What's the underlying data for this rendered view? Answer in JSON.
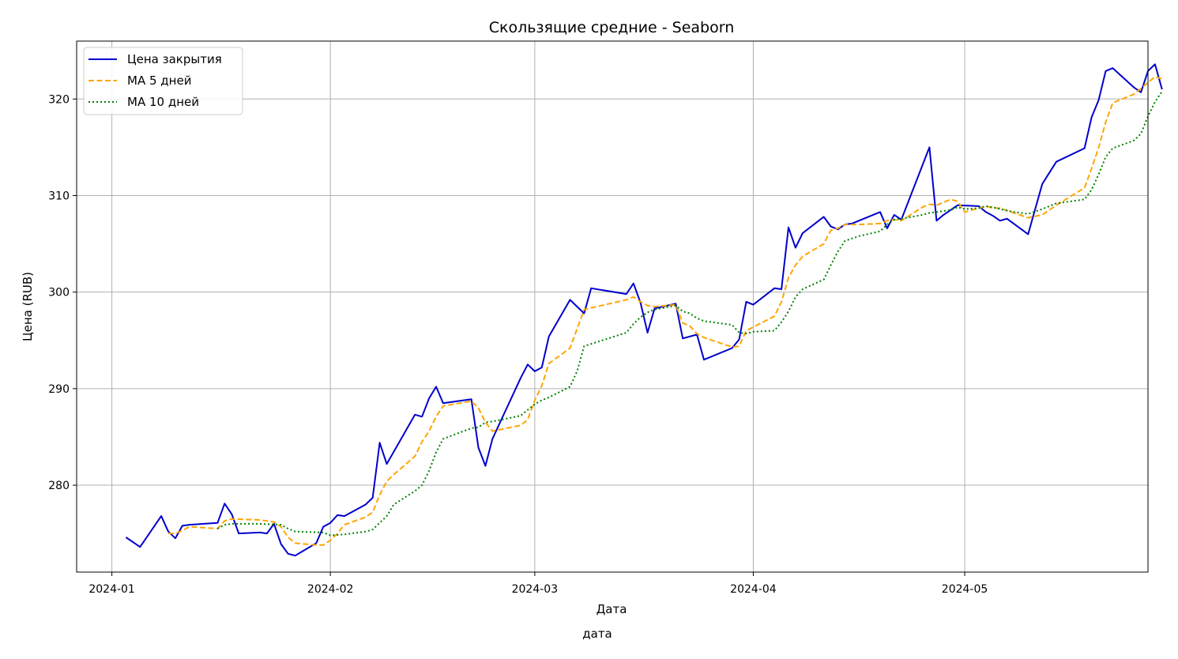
{
  "chart_data": {
    "type": "line",
    "title": "Скользящие средние - Seaborn",
    "xlabel": "Дата",
    "ylabel": "Цена (RUB)",
    "footer_label": "дата",
    "x_ticks": [
      "2024-01",
      "2024-02",
      "2024-03",
      "2024-04",
      "2024-05"
    ],
    "y_ticks": [
      280,
      290,
      300,
      310,
      320
    ],
    "xlim": [
      "2023-12-27",
      "2024-05-27"
    ],
    "ylim": [
      271,
      326
    ],
    "grid": true,
    "legend_position": "top-left",
    "series": [
      {
        "name": "Цена закрытия",
        "color": "#0000cd",
        "style": "solid",
        "points": [
          [
            "2024-01-03",
            274.6
          ],
          [
            "2024-01-05",
            273.6
          ],
          [
            "2024-01-08",
            276.8
          ],
          [
            "2024-01-09",
            275.2
          ],
          [
            "2024-01-10",
            274.5
          ],
          [
            "2024-01-11",
            275.8
          ],
          [
            "2024-01-12",
            275.9
          ],
          [
            "2024-01-16",
            276.1
          ],
          [
            "2024-01-17",
            278.1
          ],
          [
            "2024-01-18",
            277.0
          ],
          [
            "2024-01-19",
            275.0
          ],
          [
            "2024-01-22",
            275.1
          ],
          [
            "2024-01-23",
            275.0
          ],
          [
            "2024-01-24",
            276.0
          ],
          [
            "2024-01-25",
            273.9
          ],
          [
            "2024-01-26",
            272.9
          ],
          [
            "2024-01-27",
            272.7
          ],
          [
            "2024-01-30",
            274.0
          ],
          [
            "2024-01-31",
            275.7
          ],
          [
            "2024-02-01",
            276.1
          ],
          [
            "2024-02-02",
            276.9
          ],
          [
            "2024-02-03",
            276.8
          ],
          [
            "2024-02-06",
            278.0
          ],
          [
            "2024-02-07",
            278.7
          ],
          [
            "2024-02-08",
            284.4
          ],
          [
            "2024-02-09",
            282.2
          ],
          [
            "2024-02-13",
            287.3
          ],
          [
            "2024-02-14",
            287.1
          ],
          [
            "2024-02-15",
            289.0
          ],
          [
            "2024-02-16",
            290.2
          ],
          [
            "2024-02-17",
            288.5
          ],
          [
            "2024-02-21",
            288.9
          ],
          [
            "2024-02-22",
            283.9
          ],
          [
            "2024-02-23",
            282.0
          ],
          [
            "2024-02-24",
            284.8
          ],
          [
            "2024-02-28",
            291.1
          ],
          [
            "2024-02-29",
            292.5
          ],
          [
            "2024-03-01",
            291.8
          ],
          [
            "2024-03-02",
            292.2
          ],
          [
            "2024-03-03",
            295.4
          ],
          [
            "2024-03-06",
            299.2
          ],
          [
            "2024-03-08",
            297.8
          ],
          [
            "2024-03-09",
            300.4
          ],
          [
            "2024-03-14",
            299.8
          ],
          [
            "2024-03-15",
            300.9
          ],
          [
            "2024-03-16",
            298.9
          ],
          [
            "2024-03-17",
            295.8
          ],
          [
            "2024-03-18",
            298.3
          ],
          [
            "2024-03-21",
            298.8
          ],
          [
            "2024-03-22",
            295.2
          ],
          [
            "2024-03-24",
            295.6
          ],
          [
            "2024-03-25",
            293.0
          ],
          [
            "2024-03-29",
            294.2
          ],
          [
            "2024-03-30",
            295.1
          ],
          [
            "2024-03-31",
            299.0
          ],
          [
            "2024-04-01",
            298.7
          ],
          [
            "2024-04-04",
            300.4
          ],
          [
            "2024-04-05",
            300.3
          ],
          [
            "2024-04-06",
            306.7
          ],
          [
            "2024-04-07",
            304.6
          ],
          [
            "2024-04-08",
            306.1
          ],
          [
            "2024-04-11",
            307.8
          ],
          [
            "2024-04-12",
            306.8
          ],
          [
            "2024-04-13",
            306.5
          ],
          [
            "2024-04-14",
            307.0
          ],
          [
            "2024-04-15",
            307.1
          ],
          [
            "2024-04-19",
            308.3
          ],
          [
            "2024-04-20",
            306.6
          ],
          [
            "2024-04-21",
            308.0
          ],
          [
            "2024-04-22",
            307.5
          ],
          [
            "2024-04-26",
            315.0
          ],
          [
            "2024-04-27",
            307.4
          ],
          [
            "2024-04-28",
            308.0
          ],
          [
            "2024-04-30",
            309.0
          ],
          [
            "2024-05-03",
            308.9
          ],
          [
            "2024-05-04",
            308.3
          ],
          [
            "2024-05-05",
            307.9
          ],
          [
            "2024-05-06",
            307.4
          ],
          [
            "2024-05-07",
            307.6
          ],
          [
            "2024-05-10",
            306.0
          ],
          [
            "2024-05-12",
            311.2
          ],
          [
            "2024-05-14",
            313.5
          ],
          [
            "2024-05-18",
            314.9
          ],
          [
            "2024-05-19",
            318.1
          ],
          [
            "2024-05-20",
            319.9
          ],
          [
            "2024-05-21",
            322.9
          ],
          [
            "2024-05-22",
            323.2
          ],
          [
            "2024-05-25",
            321.2
          ],
          [
            "2024-05-26",
            320.7
          ],
          [
            "2024-05-27",
            322.9
          ],
          [
            "2024-05-28",
            323.6
          ],
          [
            "2024-05-29",
            321.0
          ]
        ]
      },
      {
        "name": "MA 5 дней",
        "color": "#ffa500",
        "style": "dashed",
        "points": [
          [
            "2024-01-09",
            275.0
          ],
          [
            "2024-01-10",
            275.0
          ],
          [
            "2024-01-11",
            275.3
          ],
          [
            "2024-01-12",
            275.7
          ],
          [
            "2024-01-16",
            275.5
          ],
          [
            "2024-01-17",
            276.3
          ],
          [
            "2024-01-18",
            276.5
          ],
          [
            "2024-01-22",
            276.4
          ],
          [
            "2024-01-24",
            276.2
          ],
          [
            "2024-01-25",
            275.7
          ],
          [
            "2024-01-26",
            274.6
          ],
          [
            "2024-01-27",
            274.0
          ],
          [
            "2024-01-30",
            273.8
          ],
          [
            "2024-01-31",
            273.8
          ],
          [
            "2024-02-01",
            274.3
          ],
          [
            "2024-02-02",
            275.0
          ],
          [
            "2024-02-03",
            275.9
          ],
          [
            "2024-02-06",
            276.7
          ],
          [
            "2024-02-07",
            277.2
          ],
          [
            "2024-02-08",
            279.0
          ],
          [
            "2024-02-09",
            280.4
          ],
          [
            "2024-02-10",
            281.1
          ],
          [
            "2024-02-13",
            283.0
          ],
          [
            "2024-02-14",
            284.5
          ],
          [
            "2024-02-15",
            285.6
          ],
          [
            "2024-02-16",
            287.1
          ],
          [
            "2024-02-17",
            288.2
          ],
          [
            "2024-02-21",
            288.7
          ],
          [
            "2024-02-22",
            288.0
          ],
          [
            "2024-02-23",
            286.5
          ],
          [
            "2024-02-24",
            285.6
          ],
          [
            "2024-02-28",
            286.2
          ],
          [
            "2024-02-29",
            286.8
          ],
          [
            "2024-03-01",
            288.8
          ],
          [
            "2024-03-02",
            290.3
          ],
          [
            "2024-03-03",
            292.6
          ],
          [
            "2024-03-06",
            294.2
          ],
          [
            "2024-03-07",
            296.2
          ],
          [
            "2024-03-08",
            298.2
          ],
          [
            "2024-03-14",
            299.2
          ],
          [
            "2024-03-15",
            299.5
          ],
          [
            "2024-03-16",
            299.0
          ],
          [
            "2024-03-17",
            298.6
          ],
          [
            "2024-03-18",
            298.5
          ],
          [
            "2024-03-21",
            298.7
          ],
          [
            "2024-03-22",
            296.8
          ],
          [
            "2024-03-23",
            296.5
          ],
          [
            "2024-03-24",
            295.7
          ],
          [
            "2024-03-25",
            295.3
          ],
          [
            "2024-03-29",
            294.3
          ],
          [
            "2024-03-30",
            294.4
          ],
          [
            "2024-03-31",
            296.0
          ],
          [
            "2024-04-04",
            297.5
          ],
          [
            "2024-04-05",
            299.0
          ],
          [
            "2024-04-06",
            301.5
          ],
          [
            "2024-04-07",
            302.8
          ],
          [
            "2024-04-08",
            303.7
          ],
          [
            "2024-04-11",
            305.0
          ],
          [
            "2024-04-12",
            306.4
          ],
          [
            "2024-04-13",
            306.6
          ],
          [
            "2024-04-14",
            307.0
          ],
          [
            "2024-04-16",
            307.0
          ],
          [
            "2024-04-19",
            307.1
          ],
          [
            "2024-04-20",
            307.4
          ],
          [
            "2024-04-21",
            307.5
          ],
          [
            "2024-04-22",
            307.4
          ],
          [
            "2024-04-25",
            308.8
          ],
          [
            "2024-04-26",
            309.1
          ],
          [
            "2024-04-27",
            309.0
          ],
          [
            "2024-04-29",
            309.6
          ],
          [
            "2024-04-30",
            309.4
          ],
          [
            "2024-05-01",
            308.3
          ],
          [
            "2024-05-02",
            308.5
          ],
          [
            "2024-05-04",
            308.9
          ],
          [
            "2024-05-05",
            308.7
          ],
          [
            "2024-05-06",
            308.7
          ],
          [
            "2024-05-08",
            308.2
          ],
          [
            "2024-05-10",
            307.7
          ],
          [
            "2024-05-12",
            308.0
          ],
          [
            "2024-05-14",
            309.0
          ],
          [
            "2024-05-18",
            310.8
          ],
          [
            "2024-05-19",
            312.8
          ],
          [
            "2024-05-20",
            315.0
          ],
          [
            "2024-05-21",
            317.6
          ],
          [
            "2024-05-22",
            319.6
          ],
          [
            "2024-05-25",
            320.5
          ],
          [
            "2024-05-26",
            321.1
          ],
          [
            "2024-05-27",
            321.7
          ],
          [
            "2024-05-28",
            322.3
          ],
          [
            "2024-05-29",
            322.1
          ]
        ]
      },
      {
        "name": "MA 10 дней",
        "color": "#008000",
        "style": "dotted",
        "points": [
          [
            "2024-01-16",
            275.5
          ],
          [
            "2024-01-17",
            275.9
          ],
          [
            "2024-01-18",
            276.0
          ],
          [
            "2024-01-22",
            276.0
          ],
          [
            "2024-01-25",
            275.9
          ],
          [
            "2024-01-26",
            275.5
          ],
          [
            "2024-01-27",
            275.2
          ],
          [
            "2024-01-31",
            275.1
          ],
          [
            "2024-02-01",
            274.8
          ],
          [
            "2024-02-03",
            274.9
          ],
          [
            "2024-02-06",
            275.2
          ],
          [
            "2024-02-07",
            275.4
          ],
          [
            "2024-02-08",
            276.1
          ],
          [
            "2024-02-09",
            276.8
          ],
          [
            "2024-02-10",
            278.0
          ],
          [
            "2024-02-13",
            279.4
          ],
          [
            "2024-02-14",
            280.0
          ],
          [
            "2024-02-15",
            281.5
          ],
          [
            "2024-02-16",
            283.4
          ],
          [
            "2024-02-17",
            284.8
          ],
          [
            "2024-02-21",
            285.9
          ],
          [
            "2024-02-22",
            286.0
          ],
          [
            "2024-02-23",
            286.5
          ],
          [
            "2024-02-24",
            286.6
          ],
          [
            "2024-02-28",
            287.2
          ],
          [
            "2024-02-29",
            287.8
          ],
          [
            "2024-03-01",
            288.4
          ],
          [
            "2024-03-02",
            288.8
          ],
          [
            "2024-03-03",
            289.1
          ],
          [
            "2024-03-06",
            290.2
          ],
          [
            "2024-03-07",
            291.8
          ],
          [
            "2024-03-08",
            294.4
          ],
          [
            "2024-03-14",
            295.8
          ],
          [
            "2024-03-15",
            296.7
          ],
          [
            "2024-03-16",
            297.4
          ],
          [
            "2024-03-17",
            297.9
          ],
          [
            "2024-03-18",
            298.2
          ],
          [
            "2024-03-21",
            298.6
          ],
          [
            "2024-03-22",
            298.0
          ],
          [
            "2024-03-23",
            297.8
          ],
          [
            "2024-03-24",
            297.3
          ],
          [
            "2024-03-25",
            297.0
          ],
          [
            "2024-03-29",
            296.6
          ],
          [
            "2024-03-30",
            295.8
          ],
          [
            "2024-03-31",
            295.7
          ],
          [
            "2024-04-01",
            295.9
          ],
          [
            "2024-04-04",
            296.0
          ],
          [
            "2024-04-05",
            296.9
          ],
          [
            "2024-04-06",
            298.0
          ],
          [
            "2024-04-07",
            299.5
          ],
          [
            "2024-04-08",
            300.3
          ],
          [
            "2024-04-11",
            301.3
          ],
          [
            "2024-04-12",
            302.8
          ],
          [
            "2024-04-13",
            304.2
          ],
          [
            "2024-04-14",
            305.3
          ],
          [
            "2024-04-16",
            305.8
          ],
          [
            "2024-04-19",
            306.3
          ],
          [
            "2024-04-20",
            307.0
          ],
          [
            "2024-04-21",
            307.5
          ],
          [
            "2024-04-22",
            307.6
          ],
          [
            "2024-04-25",
            308.0
          ],
          [
            "2024-04-26",
            308.2
          ],
          [
            "2024-04-27",
            308.3
          ],
          [
            "2024-04-29",
            308.5
          ],
          [
            "2024-04-30",
            308.8
          ],
          [
            "2024-05-01",
            308.6
          ],
          [
            "2024-05-03",
            308.7
          ],
          [
            "2024-05-04",
            308.9
          ],
          [
            "2024-05-05",
            308.8
          ],
          [
            "2024-05-06",
            308.6
          ],
          [
            "2024-05-08",
            308.3
          ],
          [
            "2024-05-10",
            308.1
          ],
          [
            "2024-05-12",
            308.6
          ],
          [
            "2024-05-14",
            309.2
          ],
          [
            "2024-05-18",
            309.6
          ],
          [
            "2024-05-19",
            310.6
          ],
          [
            "2024-05-20",
            312.2
          ],
          [
            "2024-05-21",
            314.0
          ],
          [
            "2024-05-22",
            314.9
          ],
          [
            "2024-05-25",
            315.7
          ],
          [
            "2024-05-26",
            316.4
          ],
          [
            "2024-05-27",
            318.2
          ],
          [
            "2024-05-28",
            319.7
          ],
          [
            "2024-05-29",
            320.8
          ]
        ]
      }
    ]
  }
}
